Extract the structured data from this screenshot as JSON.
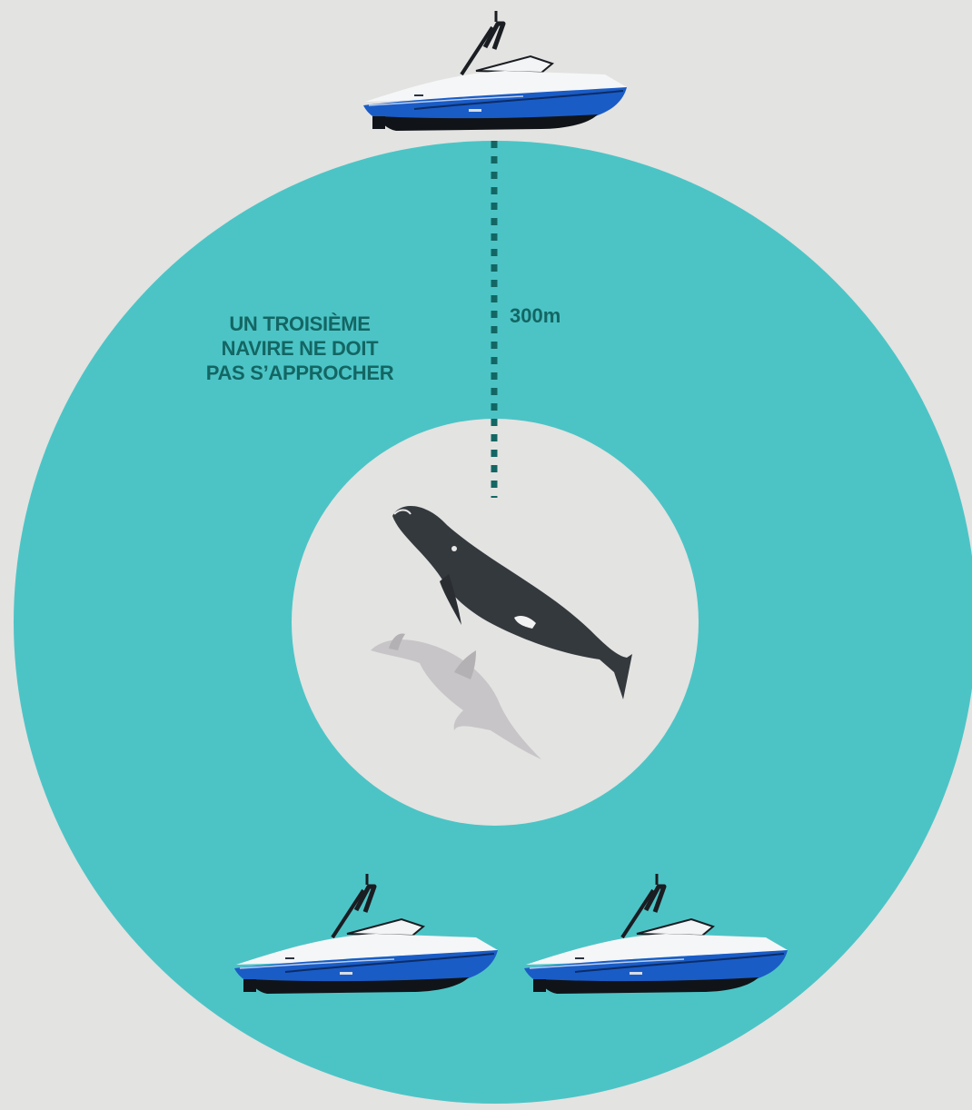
{
  "colors": {
    "background": "#e3e3e1",
    "zone": "#4cc4c6",
    "inner": "#e3e3e1",
    "text": "#136663",
    "dash": "#136663",
    "hull_blue": "#1a5cc6",
    "hull_dark": "#101418",
    "whale": "#34393e",
    "dolphin": "#c7c5c8"
  },
  "zone_label": {
    "line1": "UN TROISIÈME",
    "line2": "NAVIRE NE DOIT",
    "line3": "PAS S’APPROCHER"
  },
  "distance_label": "300m",
  "icons": {
    "boat": "boat-icon",
    "whale": "whale-icon",
    "dolphin": "dolphin-icon"
  }
}
